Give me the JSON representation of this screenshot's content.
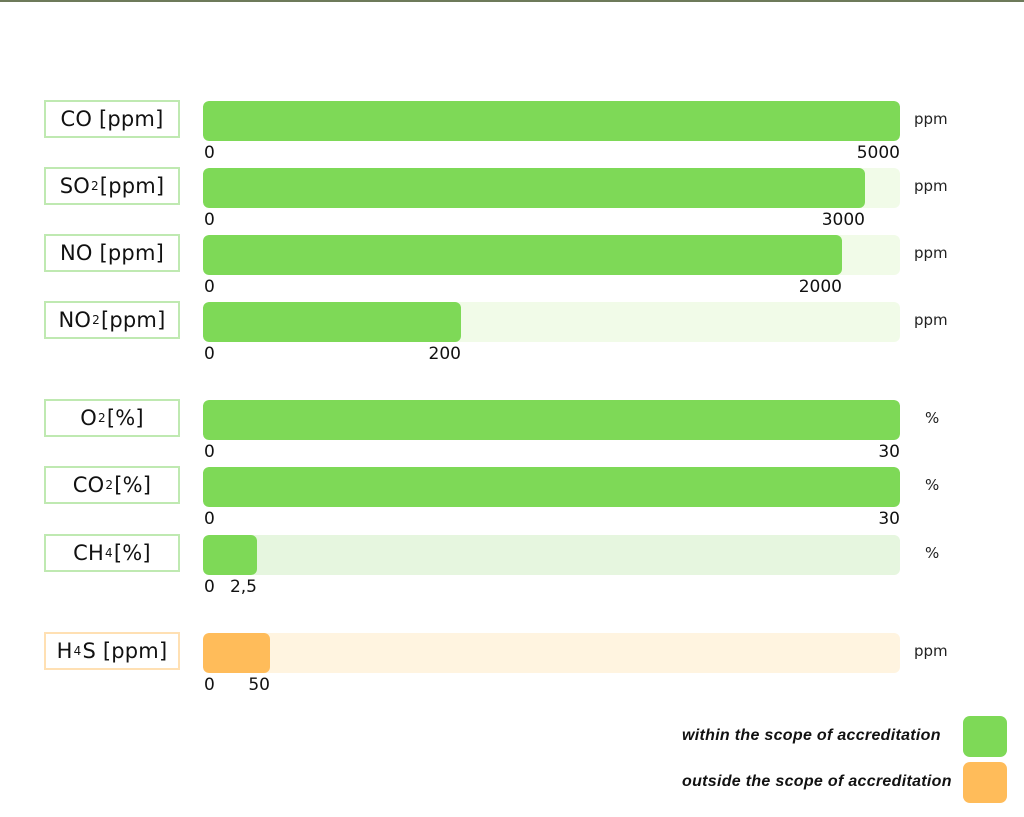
{
  "chart_data": {
    "type": "bar",
    "orientation": "horizontal",
    "grid": false,
    "legend_position": "bottom-right",
    "colors": {
      "in_scope": "#7ed957",
      "in_scope_track": "#f1fbe8",
      "in_scope_track_ch4": "#e6f6df",
      "out_scope": "#ffbc5a",
      "out_scope_track": "#fff4e0",
      "label_border_green": "#bfe9b1",
      "label_border_orange": "#ffe0b3"
    },
    "rows": [
      {
        "label": "CO [ppm]",
        "range_min": 0,
        "range_max": 5000,
        "min_label": "0",
        "max_label": "5000",
        "unit": "ppm",
        "fill_fraction": 1.0,
        "scope": "in"
      },
      {
        "label": "SO₂ [ppm]",
        "range_min": 0,
        "range_max": 3000,
        "min_label": "0",
        "max_label": "3000",
        "unit": "ppm",
        "fill_fraction": 0.95,
        "scope": "in"
      },
      {
        "label": "NO [ppm]",
        "range_min": 0,
        "range_max": 2000,
        "min_label": "0",
        "max_label": "2000",
        "unit": "ppm",
        "fill_fraction": 0.917,
        "scope": "in"
      },
      {
        "label": "NO₂ [ppm]",
        "range_min": 0,
        "range_max": 200,
        "min_label": "0",
        "max_label": "200",
        "unit": "ppm",
        "fill_fraction": 0.37,
        "scope": "in"
      },
      {
        "label": "O₂ [%]",
        "range_min": 0,
        "range_max": 30,
        "min_label": "0",
        "max_label": "30",
        "unit": "%",
        "fill_fraction": 1.0,
        "scope": "in"
      },
      {
        "label": "CO₂ [%]",
        "range_min": 0,
        "range_max": 30,
        "min_label": "0",
        "max_label": "30",
        "unit": "%",
        "fill_fraction": 1.0,
        "scope": "in"
      },
      {
        "label": "CH₄ [%]",
        "range_min": 0,
        "range_max": 2.5,
        "min_label": "0",
        "max_label": "2,5",
        "unit": "%",
        "fill_fraction": 0.077,
        "scope": "in"
      },
      {
        "label": "H₄S [ppm]",
        "range_min": 0,
        "range_max": 50,
        "min_label": "0",
        "max_label": "50",
        "unit": "ppm",
        "fill_fraction": 0.096,
        "scope": "out"
      }
    ],
    "legend": [
      {
        "label": "within the scope of accreditation",
        "scope": "in"
      },
      {
        "label": "outside the scope of accreditation",
        "scope": "out"
      }
    ]
  }
}
